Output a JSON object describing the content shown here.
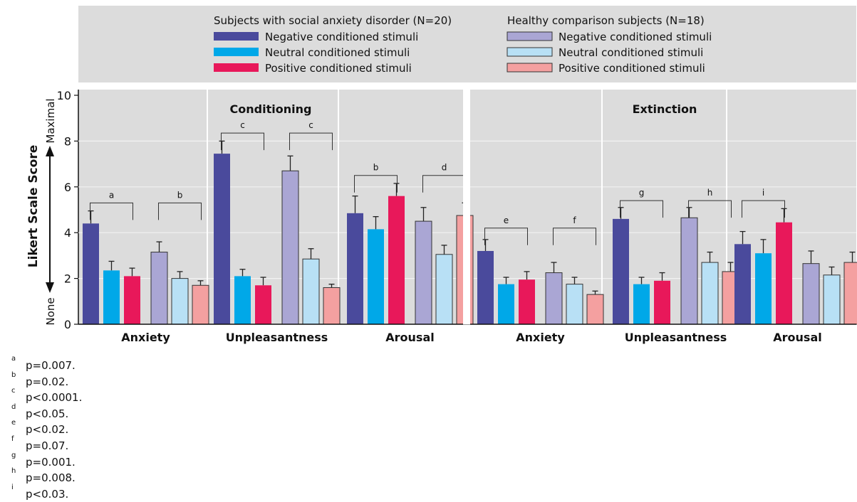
{
  "chart_data": {
    "type": "bar",
    "ylabel": "Likert Scale Score",
    "ylabel_top": "Maximal",
    "ylabel_bottom": "None",
    "ylim": [
      0,
      10
    ],
    "yticks": [
      "0",
      "2",
      "4",
      "6",
      "8",
      "10"
    ],
    "grid": true,
    "legend": {
      "placement": "top",
      "groups": [
        {
          "title": "Subjects with social anxiety disorder (N=20)",
          "entries": [
            {
              "label": "Negative conditioned stimuli",
              "color": "#4a4a9c"
            },
            {
              "label": "Neutral conditioned stimuli",
              "color": "#00a8e8"
            },
            {
              "label": "Positive conditioned stimuli",
              "color": "#e8185a"
            }
          ]
        },
        {
          "title": "Healthy comparison subjects (N=18)",
          "entries": [
            {
              "label": "Negative conditioned stimuli",
              "color": "#aaa6d4"
            },
            {
              "label": "Neutral conditioned stimuli",
              "color": "#b8e0f5"
            },
            {
              "label": "Positive conditioned stimuli",
              "color": "#f4a0a0"
            }
          ]
        }
      ]
    },
    "panels": [
      {
        "title": "Conditioning",
        "categories": [
          {
            "name": "Anxiety",
            "values": [
              4.4,
              2.35,
              2.1,
              3.15,
              2.0,
              1.7
            ],
            "errors": [
              0.55,
              0.4,
              0.35,
              0.45,
              0.3,
              0.2
            ],
            "brackets": [
              {
                "label": "a",
                "from": 0,
                "to": 2,
                "y": 5.3
              },
              {
                "label": "b",
                "from": 3,
                "to": 5,
                "y": 5.3
              }
            ]
          },
          {
            "name": "Unpleasantness",
            "values": [
              7.45,
              2.1,
              1.7,
              6.7,
              2.85,
              1.6
            ],
            "errors": [
              0.55,
              0.3,
              0.35,
              0.65,
              0.45,
              0.15
            ],
            "brackets": [
              {
                "label": "c",
                "from": 0,
                "to": 2,
                "y": 8.35
              },
              {
                "label": "c",
                "from": 3,
                "to": 5,
                "y": 8.35
              }
            ]
          },
          {
            "name": "Arousal",
            "values": [
              4.85,
              4.15,
              5.6,
              4.5,
              3.05,
              4.75
            ],
            "errors": [
              0.75,
              0.55,
              0.55,
              0.6,
              0.4,
              0.55
            ],
            "brackets": [
              {
                "label": "b",
                "from": 0,
                "to": 2,
                "y": 6.5
              },
              {
                "label": "d",
                "from": 3,
                "to": 5,
                "y": 6.5
              }
            ]
          }
        ]
      },
      {
        "title": "Extinction",
        "categories": [
          {
            "name": "Anxiety",
            "values": [
              3.2,
              1.75,
              1.95,
              2.25,
              1.75,
              1.3
            ],
            "errors": [
              0.5,
              0.3,
              0.35,
              0.45,
              0.3,
              0.15
            ],
            "brackets": [
              {
                "label": "e",
                "from": 0,
                "to": 2,
                "y": 4.2
              },
              {
                "label": "f",
                "from": 3,
                "to": 5,
                "y": 4.2
              }
            ]
          },
          {
            "name": "Unpleasantness",
            "values": [
              4.6,
              1.75,
              1.9,
              4.65,
              2.7,
              2.3
            ],
            "errors": [
              0.5,
              0.3,
              0.35,
              0.45,
              0.45,
              0.4
            ],
            "brackets": [
              {
                "label": "g",
                "from": 0,
                "to": 2,
                "y": 5.4
              },
              {
                "label": "h",
                "from": 3,
                "to": 5,
                "y": 5.4
              }
            ]
          },
          {
            "name": "Arousal",
            "values": [
              3.5,
              3.1,
              4.45,
              2.65,
              2.15,
              2.7
            ],
            "errors": [
              0.55,
              0.6,
              0.6,
              0.55,
              0.35,
              0.45
            ],
            "brackets": [
              {
                "label": "i",
                "from": 0,
                "to": 2,
                "y": 5.4
              }
            ]
          }
        ]
      }
    ]
  },
  "footnotes": [
    {
      "mark": "a",
      "text": "p=0.007."
    },
    {
      "mark": "b",
      "text": "p=0.02."
    },
    {
      "mark": "c",
      "text": "p<0.0001."
    },
    {
      "mark": "d",
      "text": "p<0.05."
    },
    {
      "mark": "e",
      "text": "p<0.02."
    },
    {
      "mark": "f",
      "text": "p=0.07."
    },
    {
      "mark": "g",
      "text": "p=0.001."
    },
    {
      "mark": "h",
      "text": "p=0.008."
    },
    {
      "mark": "i",
      "text": "p<0.03."
    }
  ]
}
